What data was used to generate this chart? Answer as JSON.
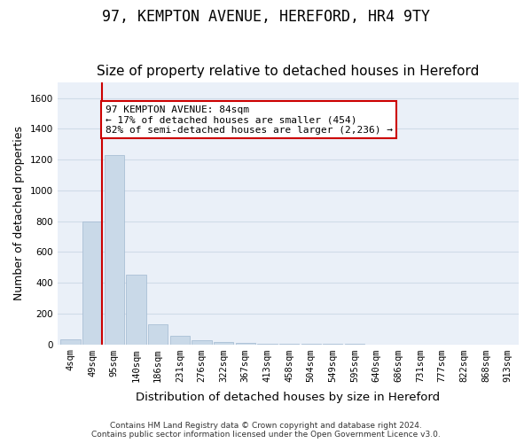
{
  "title": "97, KEMPTON AVENUE, HEREFORD, HR4 9TY",
  "subtitle": "Size of property relative to detached houses in Hereford",
  "xlabel": "Distribution of detached houses by size in Hereford",
  "ylabel": "Number of detached properties",
  "footer_line1": "Contains HM Land Registry data © Crown copyright and database right 2024.",
  "footer_line2": "Contains public sector information licensed under the Open Government Licence v3.0.",
  "bin_labels": [
    "4sqm",
    "49sqm",
    "95sqm",
    "140sqm",
    "186sqm",
    "231sqm",
    "276sqm",
    "322sqm",
    "367sqm",
    "413sqm",
    "458sqm",
    "504sqm",
    "549sqm",
    "595sqm",
    "640sqm",
    "686sqm",
    "731sqm",
    "777sqm",
    "822sqm",
    "868sqm",
    "913sqm"
  ],
  "bar_values": [
    30,
    800,
    1230,
    450,
    130,
    55,
    25,
    15,
    10,
    5,
    3,
    2,
    1,
    1,
    0,
    0,
    0,
    0,
    0,
    0,
    0
  ],
  "bar_color": "#c9d9e8",
  "bar_edge_color": "#a0b8d0",
  "grid_color": "#d0dce8",
  "bg_color": "#eaf0f8",
  "red_line_color": "#cc0000",
  "red_line_x": 1.45,
  "annotation_text": "97 KEMPTON AVENUE: 84sqm\n← 17% of detached houses are smaller (454)\n82% of semi-detached houses are larger (2,236) →",
  "annotation_box_color": "#cc0000",
  "ylim": [
    0,
    1700
  ],
  "yticks": [
    0,
    200,
    400,
    600,
    800,
    1000,
    1200,
    1400,
    1600
  ],
  "title_fontsize": 12,
  "subtitle_fontsize": 11,
  "axis_label_fontsize": 9,
  "tick_fontsize": 7.5,
  "annotation_fontsize": 8
}
